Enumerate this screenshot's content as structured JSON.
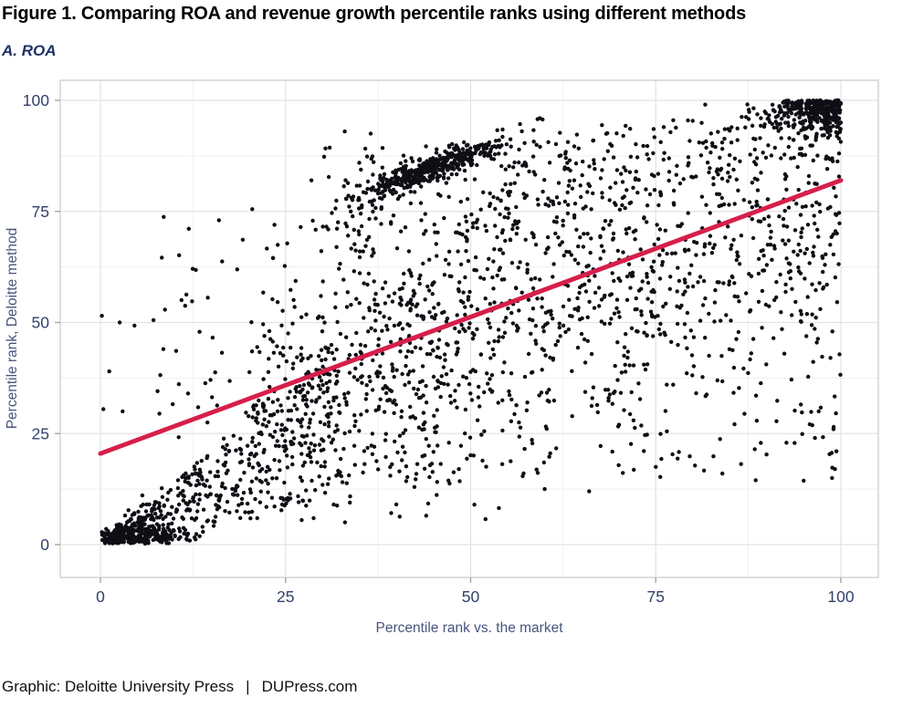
{
  "figure": {
    "title": "Figure 1. Comparing ROA and revenue growth percentile ranks using different methods",
    "panel_label": "A. ROA",
    "footer": {
      "credit": "Graphic: Deloitte University Press",
      "separator": "|",
      "site": "DUPress.com"
    }
  },
  "colors": {
    "title_text": "#000000",
    "panel_label_text": "#1e3264",
    "axis_tick_text": "#333f6b",
    "axis_title_text": "#49547e",
    "footer_text": "#111111",
    "point": "#0e0e14",
    "accent_line": "#d61f4a",
    "grid_major": "#e2e2e2",
    "grid_minor": "#efefef",
    "panel_border": "#cfcfcf",
    "tick_mark": "#a6a6a6",
    "panel_background": "#ffffff"
  },
  "chart_data": {
    "type": "scatter",
    "title": "A. ROA",
    "xlabel": "Percentile rank vs. the market",
    "ylabel": "Percentile rank, Deloitte method",
    "xlim": [
      0,
      100
    ],
    "ylim": [
      0,
      100
    ],
    "x_ticks": [
      0,
      25,
      50,
      75,
      100
    ],
    "y_ticks": [
      0,
      25,
      50,
      75,
      100
    ],
    "grid": true,
    "minor_gridlines": true,
    "legend_position": "none",
    "n_points_approx": 3300,
    "point_radius": 2.2,
    "trend_line": {
      "type": "linear",
      "x_start": 0,
      "y_start": 20.5,
      "x_end": 100,
      "y_end": 82,
      "width": 5
    },
    "seed": 1234,
    "point_clusters": [
      {
        "id": "origin-blob",
        "kind": "gauss",
        "n": 230,
        "mx": 5,
        "my": 1.7,
        "sx": 3.6,
        "sy": 1.2,
        "clip": [
          0.2,
          17,
          0.2,
          4.5
        ]
      },
      {
        "id": "lower-wedge",
        "kind": "wedge",
        "n": 640,
        "x_min": 0.5,
        "x_max": 46,
        "x_pow": 1.25,
        "slope_min": 0.33,
        "slope_max": 1.45,
        "noise_sd": 1.6,
        "y_min": 0.3
      },
      {
        "id": "mid-band",
        "kind": "band",
        "n": 880,
        "x_min": 20,
        "x_max": 100,
        "intercept": 18,
        "slope": 0.55,
        "sd": 15,
        "y_clip": [
          2.5,
          97.5
        ]
      },
      {
        "id": "right-field",
        "kind": "uniform",
        "n": 330,
        "x_min": 48,
        "x_max": 100,
        "y_min": 14,
        "y_max": 96
      },
      {
        "id": "left-field",
        "kind": "uniform",
        "n": 70,
        "x_min": 7,
        "x_max": 32,
        "y_min": 24,
        "y_max": 74
      },
      {
        "id": "upper-mid-field",
        "kind": "uniform",
        "n": 150,
        "x_min": 53,
        "x_max": 90,
        "y_min": 76,
        "y_max": 96
      },
      {
        "id": "arc-ridge",
        "kind": "ridge",
        "n": 430,
        "mx": 44.5,
        "sx": 4.8,
        "x_clip": [
          33,
          55.5
        ],
        "base_x": 34,
        "base_y": 78.5,
        "slope": 0.58,
        "sd": 1.5
      },
      {
        "id": "arc-halo",
        "kind": "uniform",
        "n": 90,
        "x_min": 30,
        "x_max": 57,
        "y_min": 70,
        "y_max": 90
      },
      {
        "id": "mid-gap-fill",
        "kind": "uniform",
        "n": 85,
        "x_min": 32,
        "x_max": 60,
        "y_min": 52,
        "y_max": 76
      },
      {
        "id": "corner-cluster",
        "kind": "corner",
        "n": 290,
        "cx": 100,
        "cy": 100,
        "ex": 5.5,
        "ey": 4.5,
        "x_min": 79,
        "y_min": 82,
        "max_sum": 27
      },
      {
        "id": "top-edge-clump",
        "kind": "topstrip",
        "n": 80,
        "x_min": 92.5,
        "x_max": 100,
        "y_base": 100,
        "ey": 1.3
      }
    ],
    "extra_points": [
      [
        0.2,
        51.5
      ],
      [
        2.6,
        50
      ],
      [
        4.6,
        49.3
      ],
      [
        0.4,
        30.5
      ],
      [
        3,
        30
      ],
      [
        1.2,
        39
      ],
      [
        8.5,
        44
      ],
      [
        27.8,
        51.8
      ],
      [
        16,
        73
      ],
      [
        20.5,
        75.5
      ],
      [
        23.5,
        72
      ],
      [
        28.5,
        82
      ],
      [
        33,
        93
      ],
      [
        36.5,
        92.5
      ],
      [
        99,
        26
      ],
      [
        99.4,
        21
      ],
      [
        99.2,
        17
      ],
      [
        98.8,
        15
      ],
      [
        96.5,
        24
      ],
      [
        97,
        30
      ],
      [
        60,
        12.5
      ],
      [
        66,
        12
      ],
      [
        88.5,
        14.5
      ],
      [
        75,
        17.5
      ],
      [
        50.5,
        9
      ],
      [
        44,
        6.5
      ]
    ]
  }
}
